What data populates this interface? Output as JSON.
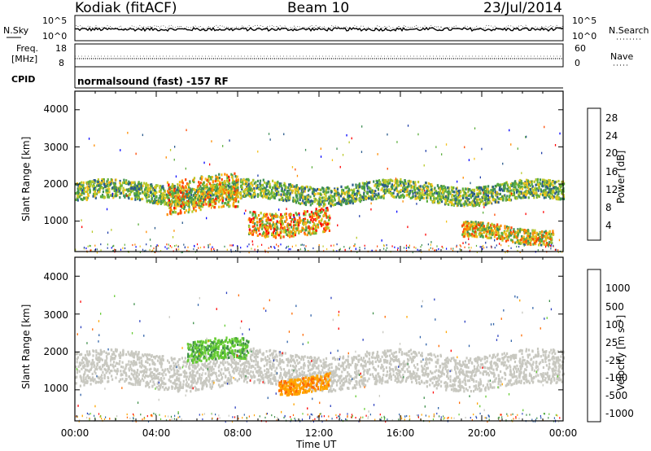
{
  "header": {
    "radar": "Kodiak (fitACF)",
    "beam": "Beam 10",
    "date": "23/Jul/2014"
  },
  "strip": {
    "nsky_label": "N.Sky",
    "nsky_ticks": [
      "10^5",
      "10^0"
    ],
    "nsearch_label": "N.Search",
    "nsearch_ticks": [
      "10^5",
      "10^0"
    ],
    "freq_label": "Freq.",
    "freq_unit": "[MHz]",
    "freq_ticks": [
      "18",
      "8"
    ],
    "nave_label": "Nave",
    "nave_ticks": [
      "60",
      "0"
    ],
    "cpid_label": "CPID",
    "cpid_value": "normalsound (fast) -157 RF"
  },
  "chart_data": [
    {
      "type": "heatmap",
      "name_printed": "",
      "xlabel": "",
      "ylabel": "Slant Range [km]",
      "yticks": [
        "4000",
        "3000",
        "2000",
        "1000"
      ],
      "ylim": [
        180,
        4500
      ],
      "xlim_hours": [
        0,
        24
      ],
      "colorbar_label": "Power [dB]",
      "colorbar_ticks": [
        "28",
        "24",
        "20",
        "16",
        "12",
        "8",
        "4"
      ],
      "colorbar_colors": [
        "#0000ff",
        "#1f3da8",
        "#2a5a8c",
        "#3f8f55",
        "#5cae3d",
        "#b9c92a",
        "#f3c11b",
        "#ff8c00",
        "#ff4800",
        "#ff0000"
      ],
      "echo_bands": [
        {
          "start_h": 0.0,
          "end_h": 24.0,
          "range_km": [
            1550,
            2050
          ],
          "peak_db": 20
        },
        {
          "start_h": 4.5,
          "end_h": 8.0,
          "range_km": [
            1300,
            2200
          ],
          "peak_db": 28
        },
        {
          "start_h": 8.5,
          "end_h": 12.5,
          "range_km": [
            700,
            1350
          ],
          "peak_db": 30
        },
        {
          "start_h": 19.0,
          "end_h": 23.5,
          "range_km": [
            500,
            900
          ],
          "peak_db": 26
        }
      ]
    },
    {
      "type": "heatmap",
      "ylabel": "Slant Range [km]",
      "yticks": [
        "4000",
        "3000",
        "2000",
        "1000"
      ],
      "ylim": [
        180,
        4500
      ],
      "xlim_hours": [
        0,
        24
      ],
      "xlabel": "Time UT",
      "xticks": [
        "00:00",
        "04:00",
        "08:00",
        "12:00",
        "16:00",
        "20:00",
        "00:00"
      ],
      "colorbar_label": "Velocity [m s⁻¹]",
      "colorbar_ticks": [
        "1000",
        "500",
        "100",
        "25",
        "-25",
        "-100",
        "-500",
        "-1000"
      ],
      "colorbar_colors": [
        "#2a3fbf",
        "#2f62a8",
        "#3e8f49",
        "#66cc33",
        "#c8c8c0",
        "#ffa500",
        "#ff6a00",
        "#ff0000"
      ],
      "echo_bands": [
        {
          "start_h": 0.0,
          "end_h": 24.0,
          "range_km": [
            1100,
            2000
          ],
          "velocity": 0
        },
        {
          "start_h": 5.5,
          "end_h": 8.5,
          "range_km": [
            1750,
            2300
          ],
          "velocity": 100
        },
        {
          "start_h": 10.0,
          "end_h": 12.5,
          "range_km": [
            1000,
            1400
          ],
          "velocity": -100
        }
      ]
    }
  ],
  "colors": {
    "axis": "#000000",
    "background": "#ffffff"
  }
}
